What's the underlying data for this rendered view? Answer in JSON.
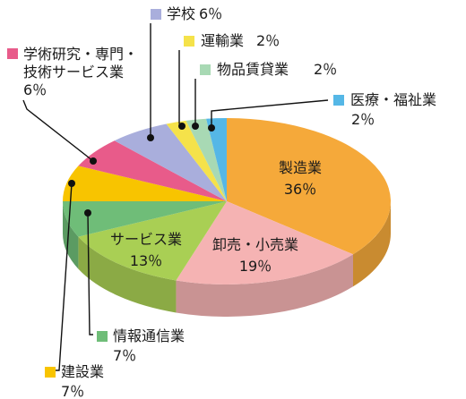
{
  "chart_data": {
    "type": "pie",
    "style": "3d",
    "unit": "％",
    "slices": [
      {
        "name": "製造業",
        "value": 36,
        "color": "#f5a93a"
      },
      {
        "name": "卸売・小売業",
        "value": 19,
        "color": "#f5b3b3"
      },
      {
        "name": "サービス業",
        "value": 13,
        "color": "#a9cf54"
      },
      {
        "name": "情報通信業",
        "value": 7,
        "color": "#6fbd78"
      },
      {
        "name": "建設業",
        "value": 7,
        "color": "#f8c400"
      },
      {
        "name": "学術研究・専門・技術サービス業",
        "value": 6,
        "color": "#e85b8a"
      },
      {
        "name": "学校",
        "value": 6,
        "color": "#a9aedc"
      },
      {
        "name": "運輸業",
        "value": 2,
        "color": "#f5e24a"
      },
      {
        "name": "物品賃貸業",
        "value": 2,
        "color": "#a8d9b4"
      },
      {
        "name": "医療・福祉業",
        "value": 2,
        "color": "#55b7e6"
      }
    ],
    "labels": {
      "製造業": {
        "name": "製造業",
        "pct": "36％"
      },
      "卸売・小売業": {
        "name": "卸売・小売業",
        "pct": "19％"
      },
      "サービス業": {
        "name": "サービス業",
        "pct": "13％"
      },
      "情報通信業": {
        "name": "情報通信業",
        "pct": "7％"
      },
      "建設業": {
        "name": "建設業",
        "pct": "7％"
      },
      "学術研究・専門・技術サービス業": {
        "line1": "学術研究・専門・",
        "line2": "技術サービス業",
        "pct": "6％"
      },
      "学校": {
        "name": "学校",
        "pct": "6％"
      },
      "運輸業": {
        "name": "運輸業",
        "pct": "2％"
      },
      "物品賃貸業": {
        "name": "物品賃貸業",
        "pct": "2％"
      },
      "医療・福祉業": {
        "name": "医療・福祉業",
        "pct": "2％"
      }
    }
  }
}
